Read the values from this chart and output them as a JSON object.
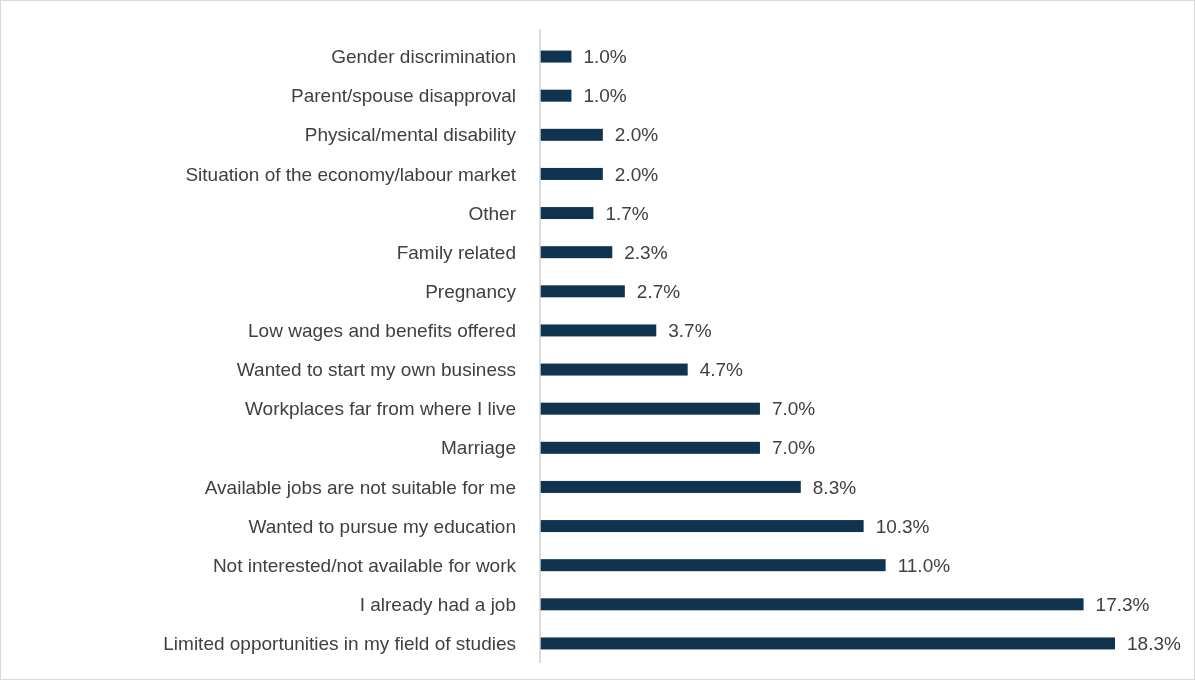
{
  "chart_data": {
    "type": "bar",
    "orientation": "horizontal",
    "categories": [
      "Gender discrimination",
      "Parent/spouse disapproval",
      "Physical/mental disability",
      "Situation of the economy/labour market",
      "Other",
      "Family related",
      "Pregnancy",
      "Low wages and benefits offered",
      "Wanted to start my own business",
      "Workplaces far from where I live",
      "Marriage",
      "Available jobs are not suitable for me",
      "Wanted to pursue my education",
      "Not interested/not available for work",
      "I already had a job",
      "Limited opportunities in my field of studies"
    ],
    "values": [
      1.0,
      1.0,
      2.0,
      2.0,
      1.7,
      2.3,
      2.7,
      3.7,
      4.7,
      7.0,
      7.0,
      8.3,
      10.3,
      11.0,
      17.3,
      18.3
    ],
    "value_labels": [
      "1.0%",
      "1.0%",
      "2.0%",
      "2.0%",
      "1.7%",
      "2.3%",
      "2.7%",
      "3.7%",
      "4.7%",
      "7.0%",
      "7.0%",
      "8.3%",
      "10.3%",
      "11.0%",
      "17.3%",
      "18.3%"
    ],
    "color": "#10344f"
  }
}
